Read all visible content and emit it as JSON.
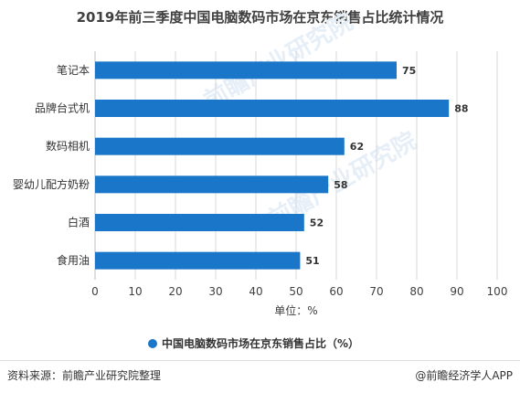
{
  "title": "2019年前三季度中国电脑数码市场在京东销售占比统计情况",
  "source": "资料来源：前瞻产业研究院整理",
  "credit": "@前瞻经济学人APP",
  "watermark": "前瞻产业研究院",
  "colors": {
    "bar": "#1976c8",
    "grid": "#d9d9d9",
    "axis": "#bfbfbf"
  },
  "chart_data": {
    "type": "bar",
    "orientation": "horizontal",
    "categories": [
      "笔记本",
      "品牌台式机",
      "数码相机",
      "婴幼儿配方奶粉",
      "白酒",
      "食用油"
    ],
    "series": [
      {
        "name": "中国电脑数码市场在京东销售占比（%）",
        "values": [
          75,
          88,
          62,
          58,
          52,
          51
        ]
      }
    ],
    "xlabel": "单位：%",
    "xlim": [
      0,
      100
    ],
    "xticks": [
      0,
      10,
      20,
      30,
      40,
      50,
      60,
      70,
      80,
      90,
      100
    ],
    "grid": true,
    "legend": "bottom-center"
  }
}
